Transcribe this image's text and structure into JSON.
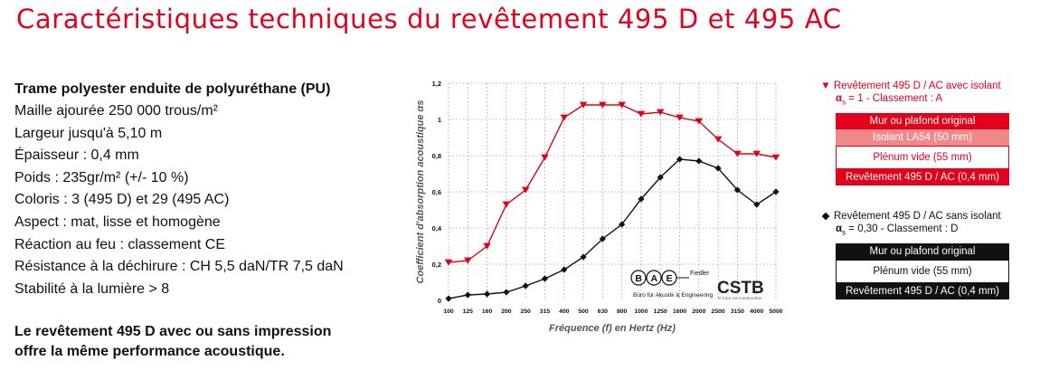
{
  "title": "Caractéristiques techniques du revêtement 495 D et 495 AC",
  "specs": {
    "heading": "Trame polyester enduite de polyuréthane (PU)",
    "lines": [
      "Maille ajourée 250 000 trous/m²",
      "Largeur jusqu'à 5,10 m",
      "Épaisseur : 0,4 mm",
      "Poids : 235gr/m² (+/- 10 %)",
      "Coloris : 3 (495 D) et 29 (495 AC)",
      "Aspect : mat, lisse et homogène",
      "Réaction au feu : classement CE",
      "Résistance à la déchirure : CH 5,5 daN/TR 7,5 daN",
      "Stabilité à la lumière > 8"
    ]
  },
  "note": {
    "line1": "Le revêtement 495 D avec ou sans impression",
    "line2": "offre la même performance acoustique."
  },
  "logos": {
    "bae_letters": "B A E",
    "bae_fiedler": "Fiedler",
    "bae_caption": "Büro für Akustik & Engineering",
    "cstb": "CSTB",
    "cstb_caption": "le futur en construction"
  },
  "legend_red": {
    "marker": "▼",
    "title": "Revêtement 495 D / AC avec isolant",
    "alpha": "α",
    "alpha_sub": "s",
    "class_text": "= 1 - Classement : A",
    "boxes": [
      "Mur ou plafond original",
      "Isolant LA54 (50 mm)",
      "Plénum vide (55 mm)",
      "Revêtement 495 D / AC (0,4 mm)"
    ]
  },
  "legend_black": {
    "marker": "◆",
    "title": "Revêtement 495 D / AC sans isolant",
    "alpha": "α",
    "alpha_sub": "s",
    "class_text": "= 0,30 - Classement : D",
    "boxes": [
      "Mur ou plafond original",
      "Plénum vide (55 mm)",
      "Revêtement 495 D / AC (0,4 mm)"
    ]
  },
  "colors": {
    "red": "#e3001b",
    "black": "#111111",
    "pink": "#f08a8a"
  },
  "chart_data": {
    "type": "line",
    "x": [
      "100",
      "125",
      "160",
      "200",
      "250",
      "315",
      "400",
      "500",
      "630",
      "800",
      "1000",
      "1250",
      "1600",
      "2000",
      "2500",
      "3150",
      "4000",
      "5000"
    ],
    "xlabel": "Fréquence (f) en Hertz (Hz)",
    "ylabel": "Coefficient d'absorption acoustique αs",
    "ylim": [
      0,
      1.2
    ],
    "yticks": [
      "0",
      "0,2",
      "0,4",
      "0,6",
      "0,8",
      "1",
      "1,2"
    ],
    "grid": true,
    "series": [
      {
        "color": "#e3001b",
        "marker": "triangle-down",
        "values": [
          0.21,
          0.22,
          0.3,
          0.53,
          0.61,
          0.79,
          1.01,
          1.08,
          1.08,
          1.08,
          1.03,
          1.04,
          1.01,
          0.99,
          0.89,
          0.81,
          0.81,
          0.79
        ]
      },
      {
        "color": "#111111",
        "marker": "diamond",
        "values": [
          0.01,
          0.03,
          0.035,
          0.045,
          0.08,
          0.12,
          0.17,
          0.24,
          0.34,
          0.42,
          0.56,
          0.68,
          0.78,
          0.77,
          0.73,
          0.61,
          0.53,
          0.6
        ]
      }
    ]
  }
}
